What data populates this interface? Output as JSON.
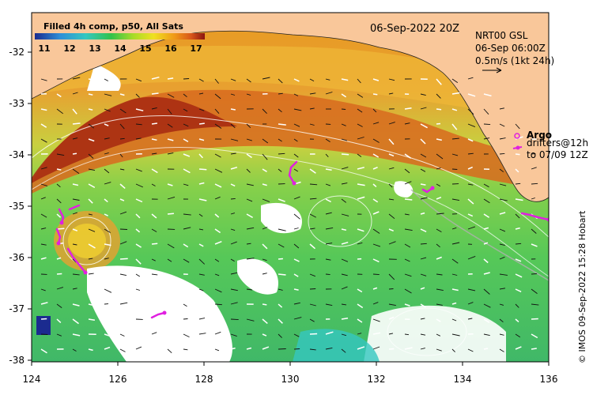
{
  "map": {
    "date": "06-Sep-2022 20Z",
    "colorbar": {
      "title": "Filled 4h comp, p50, All Sats",
      "ticks": [
        "11",
        "12",
        "13",
        "14",
        "15",
        "16",
        "17"
      ]
    },
    "info": {
      "line1": "NRT00 GSL",
      "line2": "06-Sep 06:00Z",
      "line3": "0.5m/s (1kt 24h)"
    },
    "legend": {
      "argo_label": "Argo",
      "drifters_line1": "drifters@12h",
      "drifters_line2": "to 07/09 12Z"
    },
    "credit": "© IMOS 09-Sep-2022 15:28 Hobart",
    "x_ticks": [
      "124",
      "126",
      "128",
      "130",
      "132",
      "134",
      "136"
    ],
    "y_ticks": [
      "-32",
      "-33",
      "-34",
      "-35",
      "-36",
      "-37",
      "-38"
    ],
    "colors": {
      "land": "#f9c79a",
      "drifter": "#e020e0",
      "warm": "#c0421a",
      "cool": "#38c060"
    }
  }
}
